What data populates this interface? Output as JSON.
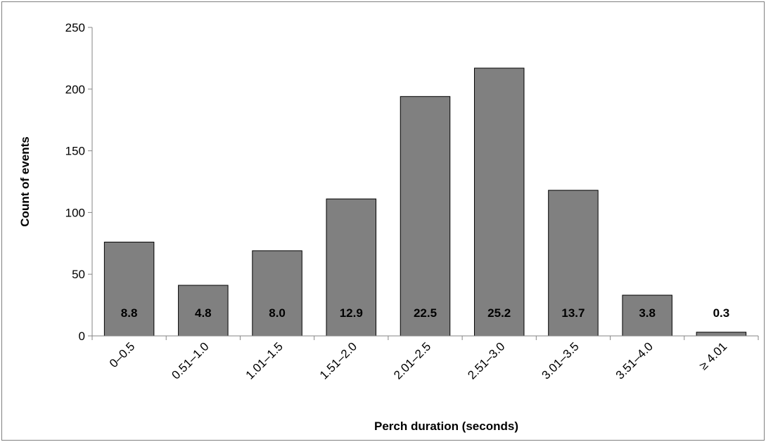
{
  "chart_data": {
    "type": "bar",
    "xlabel": "Perch duration (seconds)",
    "ylabel": "Count of events",
    "categories": [
      "0–0.5",
      "0.51–1.0",
      "1.01–1.5",
      "1.51–2.0",
      "2.01–2.5",
      "2.51–3.0",
      "3.01–3.5",
      "3.51–4.0",
      "≥ 4.01"
    ],
    "values": [
      76,
      41,
      69,
      111,
      194,
      217,
      118,
      33,
      3
    ],
    "data_labels": [
      "8.8",
      "4.8",
      "8.0",
      "12.9",
      "22.5",
      "25.2",
      "13.7",
      "3.8",
      "0.3"
    ],
    "ylim": [
      0,
      250
    ],
    "yticks": [
      0,
      50,
      100,
      150,
      200,
      250
    ],
    "grid": false,
    "legend": "none",
    "bar_color": "#808080",
    "bar_edge_color": "#000000"
  }
}
